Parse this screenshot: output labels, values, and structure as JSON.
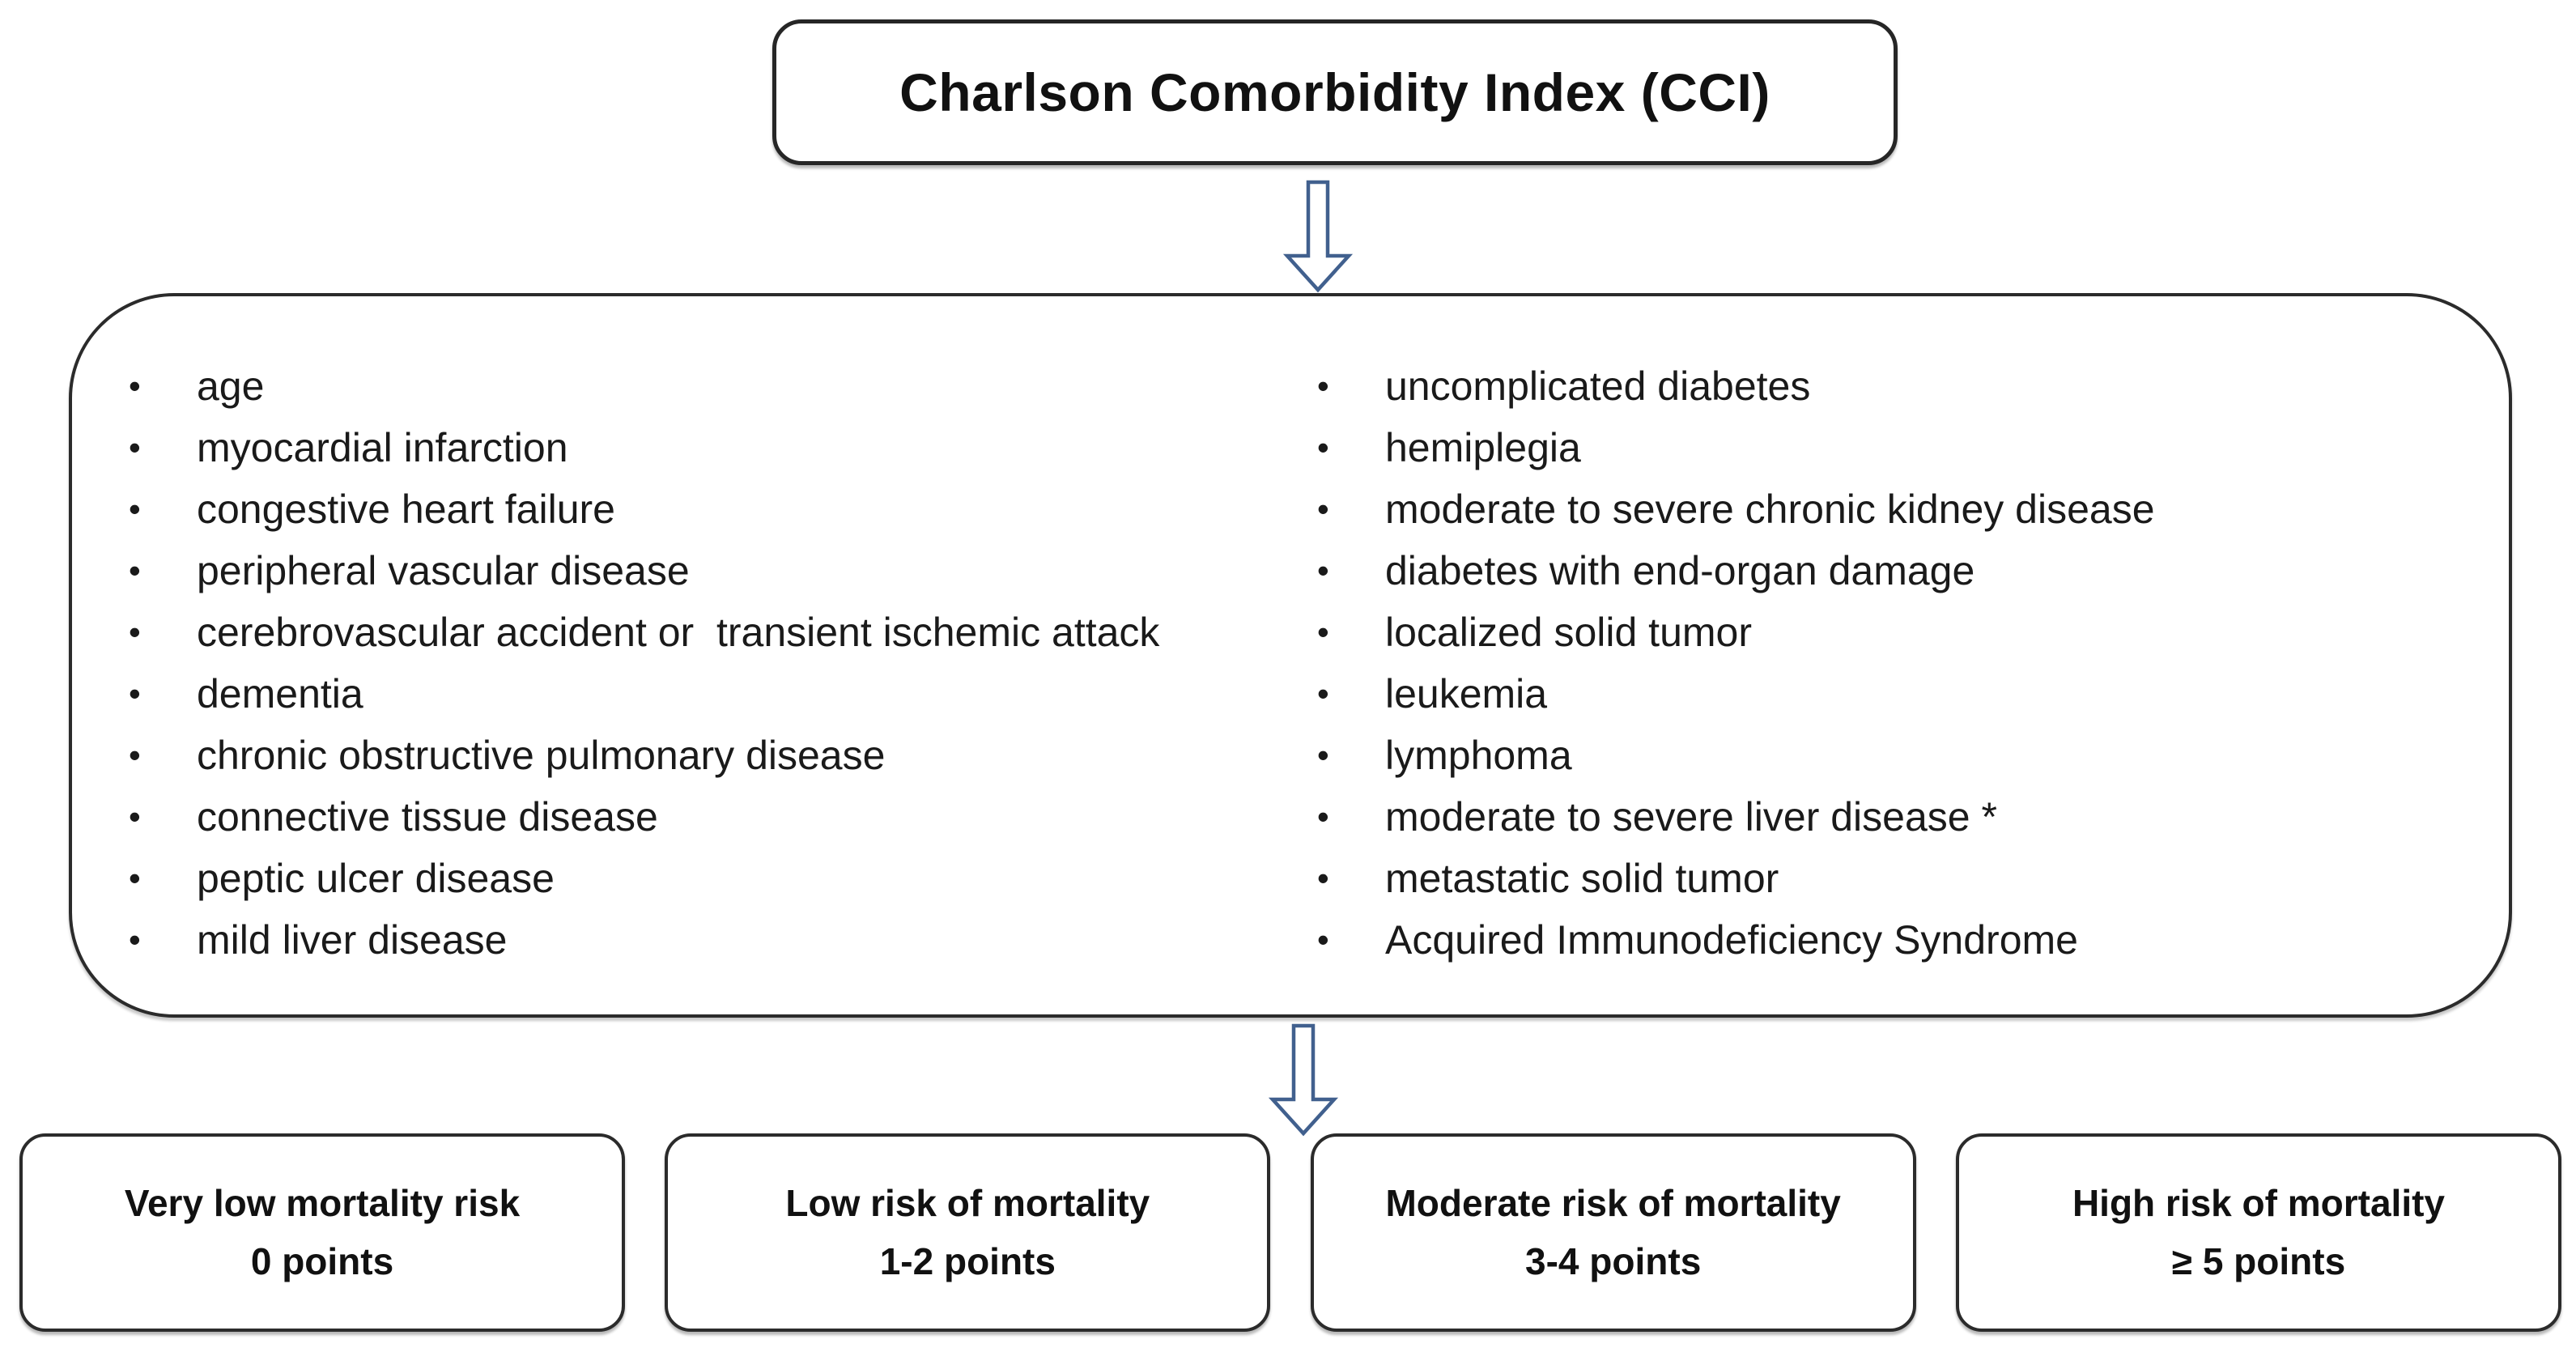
{
  "title": "Charlson Comorbidity Index (CCI)",
  "comorbidities": {
    "left_column": [
      "age",
      "myocardial infarction",
      "congestive heart failure",
      "peripheral vascular disease",
      "cerebrovascular accident or  transient ischemic attack",
      "dementia",
      "chronic obstructive pulmonary disease",
      "connective tissue disease",
      "peptic ulcer disease",
      "mild liver disease"
    ],
    "right_column": [
      "uncomplicated diabetes",
      "hemiplegia",
      "moderate to severe chronic kidney disease",
      "diabetes with end-organ damage",
      "localized solid tumor",
      "leukemia",
      "lymphoma",
      "moderate to severe liver disease *",
      "metastatic solid tumor",
      "Acquired Immunodeficiency Syndrome"
    ]
  },
  "risk_boxes": [
    {
      "label": "Very low mortality risk",
      "points": "0 points"
    },
    {
      "label": "Low risk of mortality",
      "points": "1-2 points"
    },
    {
      "label": "Moderate risk of mortality",
      "points": "3-4 points"
    },
    {
      "label": "High risk of mortality",
      "points": "≥ 5 points"
    }
  ],
  "icons": {
    "bullet": "•",
    "flow_arrow": "down-block-arrow"
  },
  "colors": {
    "arrow_outline": "#41608e",
    "box_border": "#2b2b2b",
    "text": "#111111",
    "background": "#ffffff"
  }
}
